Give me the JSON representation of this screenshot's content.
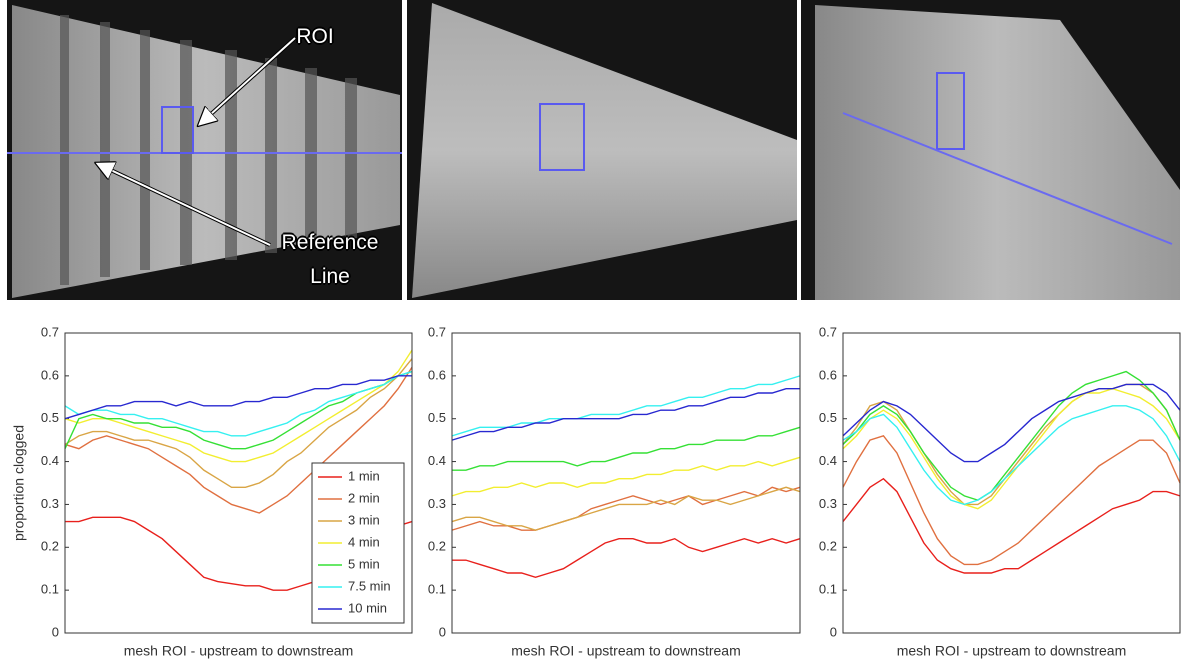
{
  "photos": {
    "annotations": [
      "ROI",
      "Reference Line"
    ]
  },
  "chart_data": [
    {
      "type": "line",
      "xlabel": "mesh ROI - upstream to downstream",
      "ylabel": "proportion clogged",
      "ylim": [
        0,
        0.7
      ],
      "yticks": [
        0,
        0.1,
        0.2,
        0.3,
        0.4,
        0.5,
        0.6,
        0.7
      ],
      "legend": "lower right",
      "series": [
        {
          "name": "1 min",
          "color": "#e8201c",
          "values": [
            0.26,
            0.26,
            0.27,
            0.27,
            0.27,
            0.26,
            0.24,
            0.22,
            0.19,
            0.16,
            0.13,
            0.12,
            0.115,
            0.11,
            0.11,
            0.1,
            0.1,
            0.11,
            0.12,
            0.14,
            0.15,
            0.17,
            0.19,
            0.22,
            0.25,
            0.26
          ]
        },
        {
          "name": "2 min",
          "color": "#e07040",
          "values": [
            0.44,
            0.43,
            0.45,
            0.46,
            0.45,
            0.44,
            0.43,
            0.41,
            0.39,
            0.37,
            0.34,
            0.32,
            0.3,
            0.29,
            0.28,
            0.3,
            0.32,
            0.35,
            0.38,
            0.41,
            0.44,
            0.47,
            0.5,
            0.53,
            0.57,
            0.62
          ]
        },
        {
          "name": "3 min",
          "color": "#d9a545",
          "values": [
            0.44,
            0.46,
            0.47,
            0.47,
            0.46,
            0.45,
            0.45,
            0.44,
            0.43,
            0.41,
            0.38,
            0.36,
            0.34,
            0.34,
            0.35,
            0.37,
            0.4,
            0.42,
            0.45,
            0.48,
            0.5,
            0.52,
            0.55,
            0.57,
            0.6,
            0.64
          ]
        },
        {
          "name": "4 min",
          "color": "#f2ee30",
          "values": [
            0.5,
            0.49,
            0.5,
            0.5,
            0.49,
            0.48,
            0.47,
            0.46,
            0.45,
            0.44,
            0.42,
            0.41,
            0.4,
            0.4,
            0.41,
            0.42,
            0.44,
            0.46,
            0.48,
            0.5,
            0.52,
            0.54,
            0.56,
            0.58,
            0.61,
            0.66
          ]
        },
        {
          "name": "5 min",
          "color": "#35e035",
          "values": [
            0.43,
            0.5,
            0.51,
            0.5,
            0.5,
            0.49,
            0.49,
            0.48,
            0.48,
            0.47,
            0.45,
            0.44,
            0.43,
            0.43,
            0.44,
            0.45,
            0.47,
            0.49,
            0.51,
            0.53,
            0.54,
            0.56,
            0.57,
            0.58,
            0.6,
            0.61
          ]
        },
        {
          "name": "7.5 min",
          "color": "#35f0f0",
          "values": [
            0.53,
            0.51,
            0.52,
            0.52,
            0.51,
            0.51,
            0.5,
            0.5,
            0.49,
            0.48,
            0.47,
            0.47,
            0.46,
            0.46,
            0.47,
            0.48,
            0.49,
            0.51,
            0.52,
            0.54,
            0.55,
            0.56,
            0.57,
            0.58,
            0.6,
            0.61
          ]
        },
        {
          "name": "10 min",
          "color": "#2828d0",
          "values": [
            0.5,
            0.51,
            0.52,
            0.53,
            0.53,
            0.54,
            0.54,
            0.54,
            0.53,
            0.54,
            0.53,
            0.53,
            0.53,
            0.54,
            0.54,
            0.55,
            0.55,
            0.56,
            0.57,
            0.57,
            0.58,
            0.58,
            0.59,
            0.59,
            0.6,
            0.6
          ]
        }
      ]
    },
    {
      "type": "line",
      "xlabel": "mesh ROI - upstream to downstream",
      "ylim": [
        0,
        0.7
      ],
      "yticks": [
        0,
        0.1,
        0.2,
        0.3,
        0.4,
        0.5,
        0.6,
        0.7
      ],
      "series": [
        {
          "color": "#e8201c",
          "values": [
            0.17,
            0.17,
            0.16,
            0.15,
            0.14,
            0.14,
            0.13,
            0.14,
            0.15,
            0.17,
            0.19,
            0.21,
            0.22,
            0.22,
            0.21,
            0.21,
            0.22,
            0.2,
            0.19,
            0.2,
            0.21,
            0.22,
            0.21,
            0.22,
            0.21,
            0.22
          ]
        },
        {
          "color": "#e07040",
          "values": [
            0.24,
            0.25,
            0.26,
            0.25,
            0.25,
            0.24,
            0.24,
            0.25,
            0.26,
            0.27,
            0.29,
            0.3,
            0.31,
            0.32,
            0.31,
            0.3,
            0.31,
            0.32,
            0.3,
            0.31,
            0.32,
            0.33,
            0.32,
            0.34,
            0.33,
            0.34
          ]
        },
        {
          "color": "#d9a545",
          "values": [
            0.26,
            0.27,
            0.27,
            0.26,
            0.25,
            0.25,
            0.24,
            0.25,
            0.26,
            0.27,
            0.28,
            0.29,
            0.3,
            0.3,
            0.3,
            0.31,
            0.3,
            0.32,
            0.31,
            0.31,
            0.3,
            0.31,
            0.32,
            0.33,
            0.34,
            0.33
          ]
        },
        {
          "color": "#f2ee30",
          "values": [
            0.32,
            0.33,
            0.33,
            0.34,
            0.34,
            0.35,
            0.34,
            0.35,
            0.35,
            0.34,
            0.35,
            0.35,
            0.36,
            0.36,
            0.37,
            0.37,
            0.38,
            0.38,
            0.39,
            0.38,
            0.39,
            0.39,
            0.4,
            0.39,
            0.4,
            0.41
          ]
        },
        {
          "color": "#35e035",
          "values": [
            0.38,
            0.38,
            0.39,
            0.39,
            0.4,
            0.4,
            0.4,
            0.4,
            0.4,
            0.39,
            0.4,
            0.4,
            0.41,
            0.42,
            0.42,
            0.43,
            0.43,
            0.44,
            0.44,
            0.45,
            0.45,
            0.45,
            0.46,
            0.46,
            0.47,
            0.48
          ]
        },
        {
          "color": "#35f0f0",
          "values": [
            0.46,
            0.47,
            0.48,
            0.48,
            0.48,
            0.49,
            0.49,
            0.5,
            0.5,
            0.5,
            0.51,
            0.51,
            0.51,
            0.52,
            0.53,
            0.53,
            0.54,
            0.55,
            0.55,
            0.56,
            0.57,
            0.57,
            0.58,
            0.58,
            0.59,
            0.6
          ]
        },
        {
          "color": "#2828d0",
          "values": [
            0.45,
            0.46,
            0.47,
            0.47,
            0.48,
            0.48,
            0.49,
            0.49,
            0.5,
            0.5,
            0.5,
            0.5,
            0.5,
            0.51,
            0.51,
            0.52,
            0.52,
            0.53,
            0.53,
            0.54,
            0.55,
            0.55,
            0.56,
            0.56,
            0.57,
            0.57
          ]
        }
      ]
    },
    {
      "type": "line",
      "xlabel": "mesh ROI - upstream to downstream",
      "ylim": [
        0,
        0.7
      ],
      "yticks": [
        0,
        0.1,
        0.2,
        0.3,
        0.4,
        0.5,
        0.6,
        0.7
      ],
      "series": [
        {
          "color": "#e8201c",
          "values": [
            0.26,
            0.3,
            0.34,
            0.36,
            0.33,
            0.27,
            0.21,
            0.17,
            0.15,
            0.14,
            0.14,
            0.14,
            0.15,
            0.15,
            0.17,
            0.19,
            0.21,
            0.23,
            0.25,
            0.27,
            0.29,
            0.3,
            0.31,
            0.33,
            0.33,
            0.32
          ]
        },
        {
          "color": "#e07040",
          "values": [
            0.34,
            0.4,
            0.45,
            0.46,
            0.42,
            0.35,
            0.28,
            0.22,
            0.18,
            0.16,
            0.16,
            0.17,
            0.19,
            0.21,
            0.24,
            0.27,
            0.3,
            0.33,
            0.36,
            0.39,
            0.41,
            0.43,
            0.45,
            0.45,
            0.42,
            0.35
          ]
        },
        {
          "color": "#d9a545",
          "values": [
            0.44,
            0.48,
            0.53,
            0.54,
            0.52,
            0.47,
            0.42,
            0.37,
            0.33,
            0.3,
            0.3,
            0.32,
            0.36,
            0.4,
            0.44,
            0.48,
            0.51,
            0.54,
            0.56,
            0.57,
            0.57,
            0.58,
            0.58,
            0.56,
            0.52,
            0.45
          ]
        },
        {
          "color": "#f2ee30",
          "values": [
            0.43,
            0.46,
            0.5,
            0.52,
            0.5,
            0.46,
            0.41,
            0.36,
            0.32,
            0.3,
            0.29,
            0.31,
            0.35,
            0.39,
            0.43,
            0.47,
            0.51,
            0.54,
            0.56,
            0.56,
            0.57,
            0.56,
            0.55,
            0.53,
            0.5,
            0.45
          ]
        },
        {
          "color": "#35e035",
          "values": [
            0.44,
            0.47,
            0.51,
            0.53,
            0.51,
            0.47,
            0.42,
            0.38,
            0.34,
            0.32,
            0.31,
            0.33,
            0.37,
            0.41,
            0.45,
            0.49,
            0.53,
            0.56,
            0.58,
            0.59,
            0.6,
            0.61,
            0.59,
            0.56,
            0.52,
            0.45
          ]
        },
        {
          "color": "#35f0f0",
          "values": [
            0.45,
            0.47,
            0.5,
            0.51,
            0.48,
            0.43,
            0.38,
            0.34,
            0.31,
            0.3,
            0.31,
            0.33,
            0.36,
            0.39,
            0.42,
            0.45,
            0.48,
            0.5,
            0.51,
            0.52,
            0.53,
            0.53,
            0.52,
            0.5,
            0.46,
            0.4
          ]
        },
        {
          "color": "#2828d0",
          "values": [
            0.46,
            0.49,
            0.52,
            0.54,
            0.53,
            0.51,
            0.48,
            0.45,
            0.42,
            0.4,
            0.4,
            0.42,
            0.44,
            0.47,
            0.5,
            0.52,
            0.54,
            0.55,
            0.56,
            0.57,
            0.57,
            0.58,
            0.58,
            0.58,
            0.56,
            0.52
          ]
        }
      ]
    }
  ]
}
